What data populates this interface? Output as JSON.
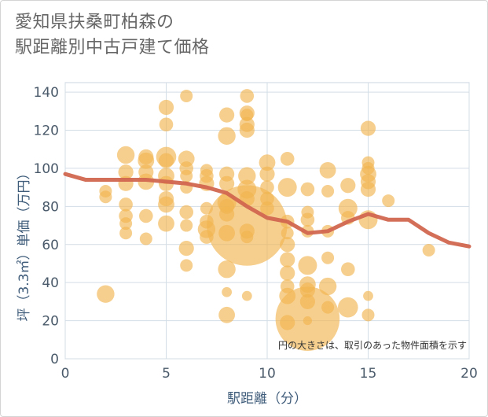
{
  "chart_data": {
    "type": "scatter",
    "title_lines": [
      "愛知県扶桑町柏森の",
      "駅距離別中古戸建て価格"
    ],
    "xlabel": "駅距離（分）",
    "ylabel": "坪（3.3㎡）単価（万円）",
    "xlim": [
      0,
      20
    ],
    "ylim": [
      0,
      145
    ],
    "xticks": [
      0,
      5,
      10,
      15,
      20
    ],
    "yticks": [
      0,
      20,
      40,
      60,
      80,
      100,
      120,
      140
    ],
    "note": "円の大きさは、取引のあった物件面積を示す",
    "bubble_color": "#f1b552",
    "line_color": "#d1664f",
    "bubbles": [
      {
        "x": 2,
        "y": 88,
        "s": 1
      },
      {
        "x": 2,
        "y": 85,
        "s": 1
      },
      {
        "x": 2,
        "y": 34,
        "s": 1.4
      },
      {
        "x": 3,
        "y": 107,
        "s": 1.4
      },
      {
        "x": 3,
        "y": 98,
        "s": 1.2
      },
      {
        "x": 3,
        "y": 92,
        "s": 1.2
      },
      {
        "x": 3,
        "y": 81,
        "s": 1.1
      },
      {
        "x": 3,
        "y": 75,
        "s": 1.1
      },
      {
        "x": 3,
        "y": 71,
        "s": 1
      },
      {
        "x": 3,
        "y": 66,
        "s": 1
      },
      {
        "x": 4,
        "y": 106,
        "s": 1.2
      },
      {
        "x": 4,
        "y": 104,
        "s": 1.3
      },
      {
        "x": 4,
        "y": 98,
        "s": 1.2
      },
      {
        "x": 4,
        "y": 93,
        "s": 1.3
      },
      {
        "x": 4,
        "y": 75,
        "s": 1.1
      },
      {
        "x": 4,
        "y": 63,
        "s": 1
      },
      {
        "x": 5,
        "y": 132,
        "s": 1.2
      },
      {
        "x": 5,
        "y": 123,
        "s": 1.1
      },
      {
        "x": 5,
        "y": 106,
        "s": 1.6
      },
      {
        "x": 5,
        "y": 104,
        "s": 1.2
      },
      {
        "x": 5,
        "y": 96,
        "s": 1.3
      },
      {
        "x": 5,
        "y": 92,
        "s": 1.2
      },
      {
        "x": 5,
        "y": 84,
        "s": 1.2
      },
      {
        "x": 5,
        "y": 81,
        "s": 1.3
      },
      {
        "x": 5,
        "y": 71,
        "s": 1.3
      },
      {
        "x": 6,
        "y": 138,
        "s": 1
      },
      {
        "x": 6,
        "y": 105,
        "s": 1.3
      },
      {
        "x": 6,
        "y": 100,
        "s": 1.1
      },
      {
        "x": 6,
        "y": 96,
        "s": 1
      },
      {
        "x": 6,
        "y": 90,
        "s": 1
      },
      {
        "x": 6,
        "y": 77,
        "s": 1.1
      },
      {
        "x": 6,
        "y": 70,
        "s": 1
      },
      {
        "x": 6,
        "y": 58,
        "s": 1.2
      },
      {
        "x": 6,
        "y": 49,
        "s": 1
      },
      {
        "x": 7,
        "y": 99,
        "s": 1
      },
      {
        "x": 7,
        "y": 96,
        "s": 1.1
      },
      {
        "x": 7,
        "y": 92,
        "s": 1.2
      },
      {
        "x": 7,
        "y": 79,
        "s": 1
      },
      {
        "x": 7,
        "y": 72,
        "s": 1.1
      },
      {
        "x": 7,
        "y": 68,
        "s": 1.4
      },
      {
        "x": 7,
        "y": 64,
        "s": 1.1
      },
      {
        "x": 8,
        "y": 128,
        "s": 1.2
      },
      {
        "x": 8,
        "y": 117,
        "s": 1.4
      },
      {
        "x": 8,
        "y": 97,
        "s": 1.2
      },
      {
        "x": 8,
        "y": 92,
        "s": 1.2
      },
      {
        "x": 8,
        "y": 82,
        "s": 1.5
      },
      {
        "x": 8,
        "y": 80,
        "s": 1.2
      },
      {
        "x": 8,
        "y": 76,
        "s": 1.2
      },
      {
        "x": 8,
        "y": 66,
        "s": 1.3
      },
      {
        "x": 8,
        "y": 47,
        "s": 1.4
      },
      {
        "x": 8,
        "y": 35,
        "s": 0.8
      },
      {
        "x": 8,
        "y": 23,
        "s": 1.3
      },
      {
        "x": 9,
        "y": 138,
        "s": 1.1
      },
      {
        "x": 9,
        "y": 129,
        "s": 1.2
      },
      {
        "x": 9,
        "y": 128,
        "s": 1
      },
      {
        "x": 9,
        "y": 123,
        "s": 1.2
      },
      {
        "x": 9,
        "y": 120,
        "s": 1.2
      },
      {
        "x": 9,
        "y": 96,
        "s": 1.4
      },
      {
        "x": 9,
        "y": 89,
        "s": 1.5
      },
      {
        "x": 9,
        "y": 84,
        "s": 1.2
      },
      {
        "x": 9,
        "y": 70,
        "s": 6.4
      },
      {
        "x": 9,
        "y": 67,
        "s": 1.2
      },
      {
        "x": 9,
        "y": 64,
        "s": 1
      },
      {
        "x": 9,
        "y": 33,
        "s": 0.8
      },
      {
        "x": 10,
        "y": 103,
        "s": 1.3
      },
      {
        "x": 10,
        "y": 97,
        "s": 1.2
      },
      {
        "x": 10,
        "y": 90,
        "s": 1.1
      },
      {
        "x": 10,
        "y": 84,
        "s": 1.1
      },
      {
        "x": 10,
        "y": 79,
        "s": 1.1
      },
      {
        "x": 11,
        "y": 105,
        "s": 1.1
      },
      {
        "x": 11,
        "y": 90,
        "s": 1.5
      },
      {
        "x": 11,
        "y": 72,
        "s": 1.1
      },
      {
        "x": 11,
        "y": 66,
        "s": 1
      },
      {
        "x": 11,
        "y": 60,
        "s": 1.2
      },
      {
        "x": 11,
        "y": 52,
        "s": 1.2
      },
      {
        "x": 11,
        "y": 45,
        "s": 1.2
      },
      {
        "x": 11,
        "y": 38,
        "s": 1.1
      },
      {
        "x": 11,
        "y": 33,
        "s": 1.3
      },
      {
        "x": 11,
        "y": 19,
        "s": 1.2
      },
      {
        "x": 12,
        "y": 89,
        "s": 1.1
      },
      {
        "x": 12,
        "y": 77,
        "s": 1
      },
      {
        "x": 12,
        "y": 73,
        "s": 1.1
      },
      {
        "x": 12,
        "y": 67,
        "s": 1
      },
      {
        "x": 12,
        "y": 49,
        "s": 1.5
      },
      {
        "x": 12,
        "y": 39,
        "s": 1.3
      },
      {
        "x": 12,
        "y": 36,
        "s": 1.2
      },
      {
        "x": 12,
        "y": 30,
        "s": 1.2
      },
      {
        "x": 12,
        "y": 21,
        "s": 5.1
      },
      {
        "x": 12,
        "y": 20,
        "s": 0.7
      },
      {
        "x": 13,
        "y": 99,
        "s": 1.3
      },
      {
        "x": 13,
        "y": 88,
        "s": 1
      },
      {
        "x": 13,
        "y": 67,
        "s": 1
      },
      {
        "x": 13,
        "y": 53,
        "s": 1
      },
      {
        "x": 13,
        "y": 38,
        "s": 1.4
      },
      {
        "x": 13,
        "y": 27,
        "s": 1
      },
      {
        "x": 14,
        "y": 91,
        "s": 1.2
      },
      {
        "x": 14,
        "y": 79,
        "s": 1.5
      },
      {
        "x": 14,
        "y": 74,
        "s": 1.1
      },
      {
        "x": 14,
        "y": 47,
        "s": 1.1
      },
      {
        "x": 14,
        "y": 27,
        "s": 1.6
      },
      {
        "x": 15,
        "y": 121,
        "s": 1.2
      },
      {
        "x": 15,
        "y": 103,
        "s": 1
      },
      {
        "x": 15,
        "y": 100,
        "s": 1
      },
      {
        "x": 15,
        "y": 97,
        "s": 1.3
      },
      {
        "x": 15,
        "y": 93,
        "s": 1.2
      },
      {
        "x": 15,
        "y": 89,
        "s": 1.2
      },
      {
        "x": 15,
        "y": 73,
        "s": 1.5
      },
      {
        "x": 15,
        "y": 33,
        "s": 0.8
      },
      {
        "x": 15,
        "y": 23,
        "s": 1
      },
      {
        "x": 16,
        "y": 83,
        "s": 1
      },
      {
        "x": 18,
        "y": 57,
        "s": 1
      }
    ],
    "trend_line": {
      "x": [
        0,
        1,
        2,
        3,
        4,
        5,
        6,
        7,
        8,
        9,
        10,
        11,
        12,
        13,
        14,
        15,
        16,
        17,
        18,
        19,
        20
      ],
      "y": [
        97,
        94,
        94,
        94,
        94,
        93,
        92,
        90,
        87,
        80,
        74,
        72,
        66,
        67,
        72,
        76,
        73,
        73,
        66,
        61,
        59
      ]
    }
  }
}
